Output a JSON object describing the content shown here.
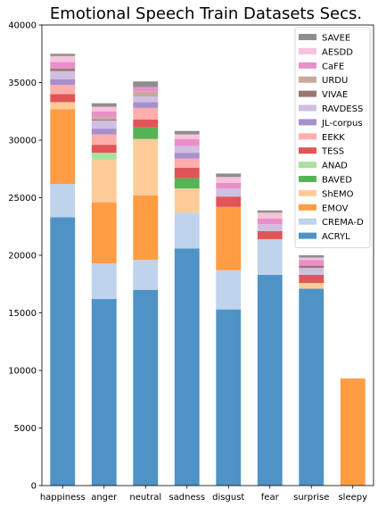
{
  "chart_data": {
    "type": "bar",
    "stacked": true,
    "title": "Emotional Speech Train Datasets Secs.",
    "xlabel": "",
    "ylabel": "",
    "ylim": [
      0,
      40000
    ],
    "yticks": [
      0,
      5000,
      10000,
      15000,
      20000,
      25000,
      30000,
      35000,
      40000
    ],
    "grid": false,
    "legend_position": "top-right",
    "categories": [
      "happiness",
      "anger",
      "neutral",
      "sadness",
      "disgust",
      "fear",
      "surprise",
      "sleepy"
    ],
    "series": [
      {
        "name": "ACRYL",
        "color": "#4f93c6",
        "values": [
          23300,
          16200,
          17000,
          20600,
          15300,
          18300,
          17100,
          0
        ]
      },
      {
        "name": "CREMA-D",
        "color": "#bfd3ec",
        "values": [
          2900,
          3100,
          2600,
          3100,
          3400,
          3100,
          0,
          0
        ]
      },
      {
        "name": "EMOV",
        "color": "#ff9d45",
        "values": [
          6500,
          5300,
          5600,
          0,
          5500,
          0,
          0,
          9300
        ]
      },
      {
        "name": "ShEMO",
        "color": "#ffcc99",
        "values": [
          600,
          3700,
          4900,
          2100,
          0,
          0,
          500,
          0
        ]
      },
      {
        "name": "BAVED",
        "color": "#57b356",
        "values": [
          0,
          0,
          1000,
          900,
          0,
          0,
          0,
          0
        ]
      },
      {
        "name": "ANAD",
        "color": "#a8e29e",
        "values": [
          0,
          600,
          0,
          0,
          0,
          0,
          0,
          0
        ]
      },
      {
        "name": "TESS",
        "color": "#e05557",
        "values": [
          700,
          700,
          700,
          900,
          900,
          700,
          700,
          0
        ]
      },
      {
        "name": "EEKK",
        "color": "#ffaeab",
        "values": [
          800,
          900,
          1000,
          800,
          0,
          0,
          0,
          0
        ]
      },
      {
        "name": "JL-corpus",
        "color": "#a88fcd",
        "values": [
          500,
          500,
          500,
          500,
          0,
          0,
          0,
          0
        ]
      },
      {
        "name": "RAVDESS",
        "color": "#cfbfe3",
        "values": [
          700,
          700,
          500,
          600,
          700,
          600,
          600,
          0
        ]
      },
      {
        "name": "VIVAE",
        "color": "#9d7470",
        "values": [
          200,
          100,
          0,
          0,
          0,
          0,
          200,
          0
        ]
      },
      {
        "name": "URDU",
        "color": "#c9a99e",
        "values": [
          0,
          200,
          400,
          0,
          0,
          0,
          0,
          0
        ]
      },
      {
        "name": "CaFE",
        "color": "#e990c9",
        "values": [
          600,
          500,
          400,
          600,
          500,
          500,
          500,
          0
        ]
      },
      {
        "name": "AESDD",
        "color": "#f7c2dc",
        "values": [
          500,
          400,
          0,
          400,
          500,
          500,
          200,
          0
        ]
      },
      {
        "name": "SAVEE",
        "color": "#8e8e8e",
        "values": [
          200,
          300,
          500,
          300,
          300,
          200,
          200,
          0
        ]
      }
    ]
  }
}
